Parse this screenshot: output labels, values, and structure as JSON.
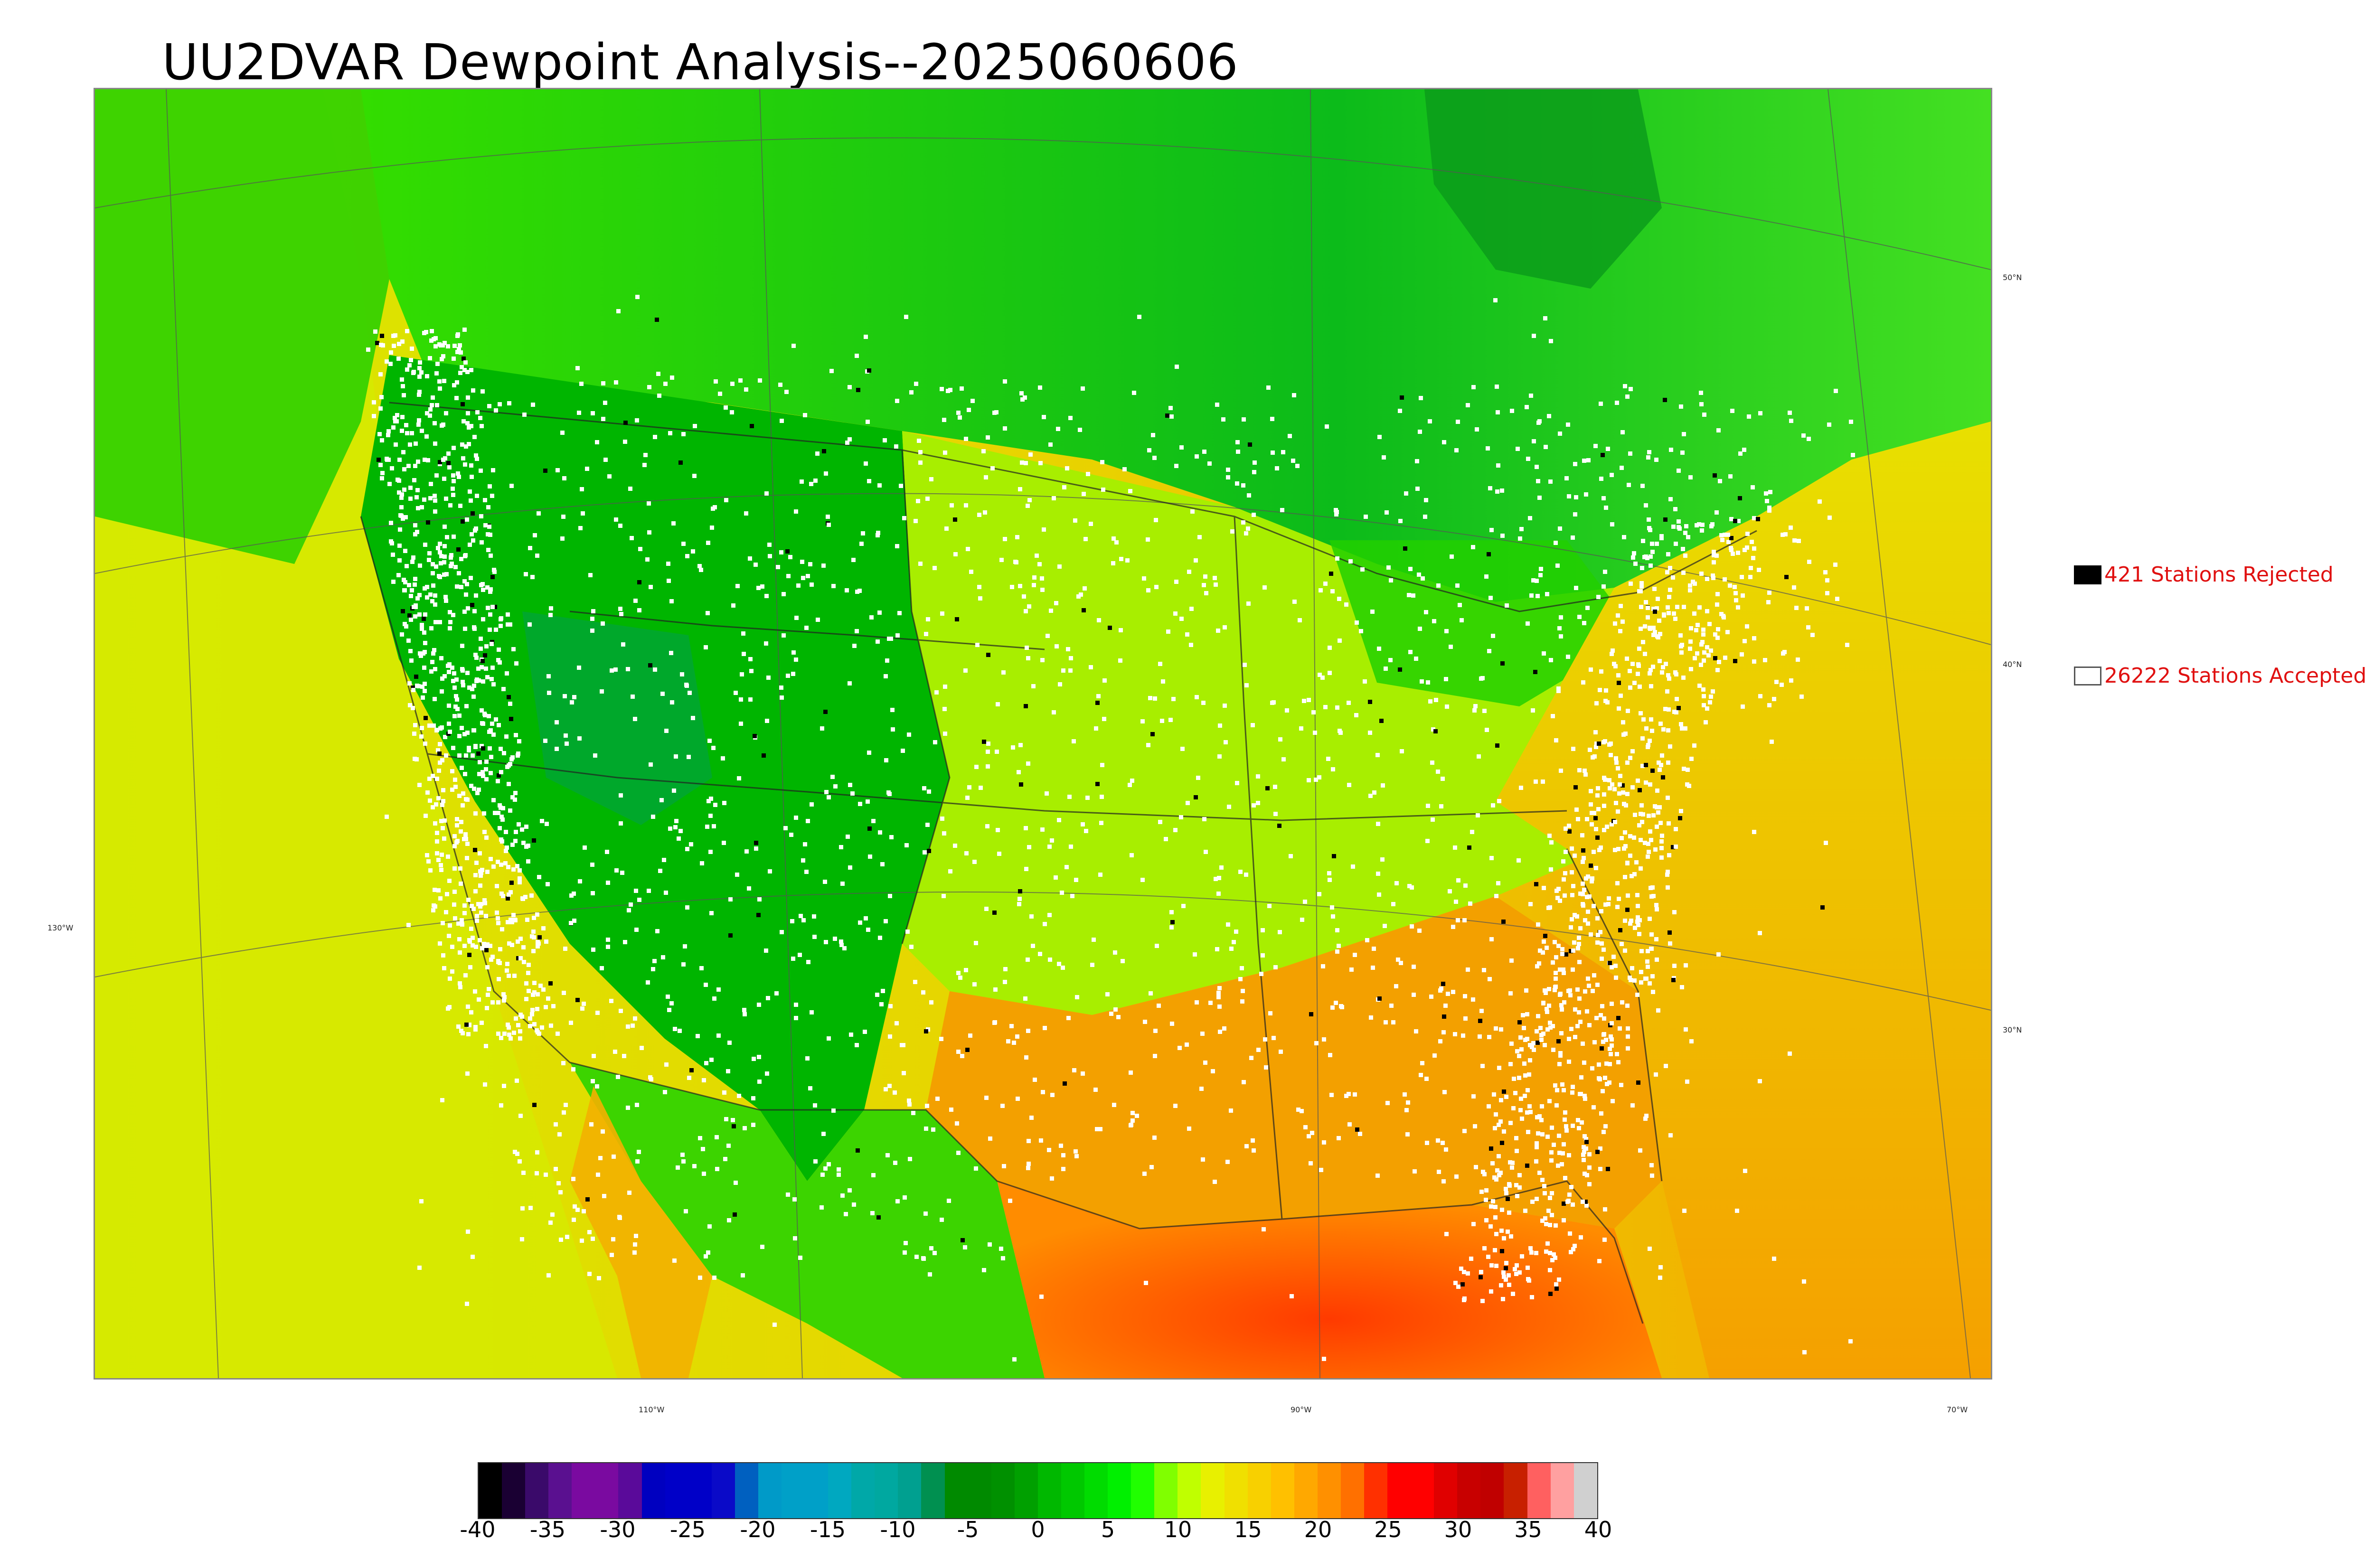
{
  "title": "UU2DVAR Dewpoint Analysis--2025060606",
  "legend": {
    "rejected": {
      "count": 421,
      "label": "421 Stations Rejected",
      "color": "#000000"
    },
    "accepted": {
      "count": 26222,
      "label": "26222 Stations Accepted",
      "color": "#ffffff"
    }
  },
  "axis_labels": {
    "longitude": [
      "130°W",
      "110°W",
      "90°W",
      "70°W"
    ],
    "latitude": [
      "50°N",
      "40°N",
      "30°N"
    ]
  },
  "colorbar": {
    "ticks": [
      "-40",
      "-35",
      "-30",
      "-25",
      "-20",
      "-15",
      "-10",
      "-5",
      "0",
      "5",
      "10",
      "15",
      "20",
      "25",
      "30",
      "35",
      "40"
    ],
    "range": [
      -40,
      40
    ],
    "colors": [
      "#000000",
      "#1a0033",
      "#3a0a6a",
      "#5a1090",
      "#7a0aa0",
      "#7a0aa0",
      "#5a0a9a",
      "#0000c0",
      "#0000c8",
      "#0000c8",
      "#0a0ac8",
      "#0060c0",
      "#009ac8",
      "#00a0c8",
      "#00a0c8",
      "#00a8c0",
      "#00a8a8",
      "#00a8a0",
      "#00a090",
      "#009050",
      "#008a00",
      "#008a00",
      "#009000",
      "#00a000",
      "#00b800",
      "#00c800",
      "#00dc00",
      "#00f000",
      "#20ff00",
      "#80ff00",
      "#c0ff00",
      "#e8f000",
      "#f0e000",
      "#f8d000",
      "#ffc000",
      "#ffa800",
      "#ff9000",
      "#ff7000",
      "#ff3000",
      "#ff0000",
      "#ff0000",
      "#e00000",
      "#c80000",
      "#c00000",
      "#c82000",
      "#ff6060",
      "#ffa0a0",
      "#d0d0d0"
    ]
  },
  "map_colors": {
    "ocean_west": "#dde800",
    "ocean_east": "#f5b000",
    "gulf": "#ff6a00",
    "canada": "#33cc11",
    "mountain_west": "#00b400",
    "plains": "#c8ee00",
    "southeast": "#f0a800",
    "station_accepted": "#ffffff",
    "station_rejected": "#000000"
  }
}
